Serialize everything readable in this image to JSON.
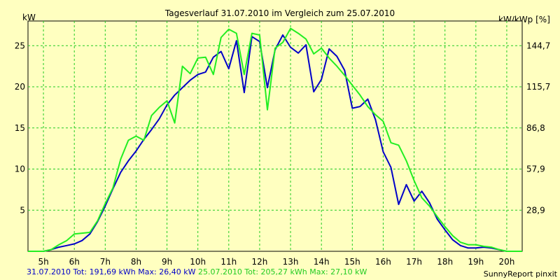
{
  "chart_data": {
    "type": "line",
    "title": "Tagesverlauf 31.07.2010 im Vergleich zum 25.07.2010",
    "ylabel_left": "kW",
    "ylabel_right": "kW/kWp [%]",
    "x_ticks": [
      "5h",
      "6h",
      "7h",
      "8h",
      "9h",
      "10h",
      "11h",
      "12h",
      "13h",
      "14h",
      "15h",
      "16h",
      "17h",
      "18h",
      "19h",
      "20h"
    ],
    "x_range_hours": [
      4.5,
      20.5
    ],
    "ylim": [
      0,
      28
    ],
    "y_ticks_left": [
      5,
      10,
      15,
      20,
      25
    ],
    "y_tick_labels_left": [
      "5",
      "10",
      "15",
      "20",
      "25"
    ],
    "y_ticks_right_labels": [
      "28,9",
      "57,9",
      "86,8",
      "115,7",
      "144,7"
    ],
    "grid": true,
    "series": [
      {
        "name": "31.07.2010",
        "color": "#0000c8",
        "x": [
          4.5,
          5.0,
          5.25,
          5.5,
          5.75,
          6.0,
          6.25,
          6.5,
          6.75,
          7.0,
          7.25,
          7.5,
          7.75,
          8.0,
          8.25,
          8.5,
          8.75,
          9.0,
          9.25,
          9.5,
          9.75,
          10.0,
          10.25,
          10.5,
          10.75,
          11.0,
          11.25,
          11.5,
          11.75,
          12.0,
          12.25,
          12.5,
          12.75,
          13.0,
          13.25,
          13.5,
          13.75,
          14.0,
          14.25,
          14.5,
          14.75,
          15.0,
          15.25,
          15.5,
          15.75,
          16.0,
          16.25,
          16.5,
          16.75,
          17.0,
          17.25,
          17.5,
          17.75,
          18.0,
          18.25,
          18.5,
          18.75,
          19.0,
          19.25,
          19.5,
          19.75,
          20.0,
          20.5
        ],
        "values": [
          0,
          0,
          0.2,
          0.5,
          0.7,
          0.9,
          1.3,
          2.1,
          3.6,
          5.5,
          7.6,
          9.6,
          11.0,
          12.2,
          13.6,
          14.8,
          16.1,
          17.8,
          19.0,
          19.9,
          20.8,
          21.5,
          21.8,
          23.6,
          24.3,
          22.2,
          25.6,
          19.3,
          26.1,
          25.5,
          19.9,
          24.5,
          26.3,
          24.8,
          24.1,
          25.1,
          19.4,
          20.9,
          24.6,
          23.7,
          22.0,
          17.4,
          17.6,
          18.5,
          16.0,
          12.1,
          10.2,
          5.7,
          8.1,
          6.1,
          7.3,
          5.9,
          3.9,
          2.6,
          1.4,
          0.7,
          0.4,
          0.4,
          0.5,
          0.4,
          0.2,
          0,
          0
        ]
      },
      {
        "name": "25.07.2010",
        "color": "#22ee22",
        "x": [
          4.5,
          5.0,
          5.25,
          5.5,
          5.75,
          6.0,
          6.25,
          6.5,
          6.75,
          7.0,
          7.25,
          7.5,
          7.75,
          8.0,
          8.25,
          8.5,
          8.75,
          9.0,
          9.25,
          9.5,
          9.75,
          10.0,
          10.25,
          10.5,
          10.75,
          11.0,
          11.25,
          11.5,
          11.75,
          12.0,
          12.25,
          12.5,
          12.75,
          13.0,
          13.25,
          13.5,
          13.75,
          14.0,
          14.25,
          14.5,
          14.75,
          15.0,
          15.25,
          15.5,
          15.75,
          16.0,
          16.25,
          16.5,
          16.75,
          17.0,
          17.25,
          17.5,
          17.75,
          18.0,
          18.25,
          18.5,
          18.75,
          19.0,
          19.25,
          19.5,
          19.75,
          20.0,
          20.5
        ],
        "values": [
          0,
          0,
          0.2,
          0.8,
          1.3,
          2.1,
          2.2,
          2.3,
          3.7,
          5.8,
          7.7,
          11.2,
          13.5,
          14.0,
          13.5,
          16.5,
          17.5,
          18.3,
          15.6,
          22.5,
          21.6,
          23.5,
          23.6,
          21.5,
          26.0,
          27.0,
          26.5,
          21.5,
          26.5,
          26.3,
          17.2,
          24.7,
          25.4,
          27.1,
          26.5,
          25.8,
          24.0,
          24.7,
          23.5,
          22.5,
          21.4,
          20.2,
          19.0,
          17.6,
          16.6,
          15.8,
          13.2,
          12.9,
          11.0,
          8.6,
          6.5,
          5.5,
          4.2,
          3.0,
          1.9,
          1.1,
          0.8,
          0.8,
          0.6,
          0.5,
          0.2,
          0,
          0
        ]
      }
    ]
  },
  "footer": {
    "series1_text": "31.07.2010 Tot: 191,69 kWh Max: 26,40 kW",
    "series2_text": "25.07.2010 Tot: 205,27 kWh Max: 27,10 kW",
    "credit": "SunnyReport pinxit"
  }
}
